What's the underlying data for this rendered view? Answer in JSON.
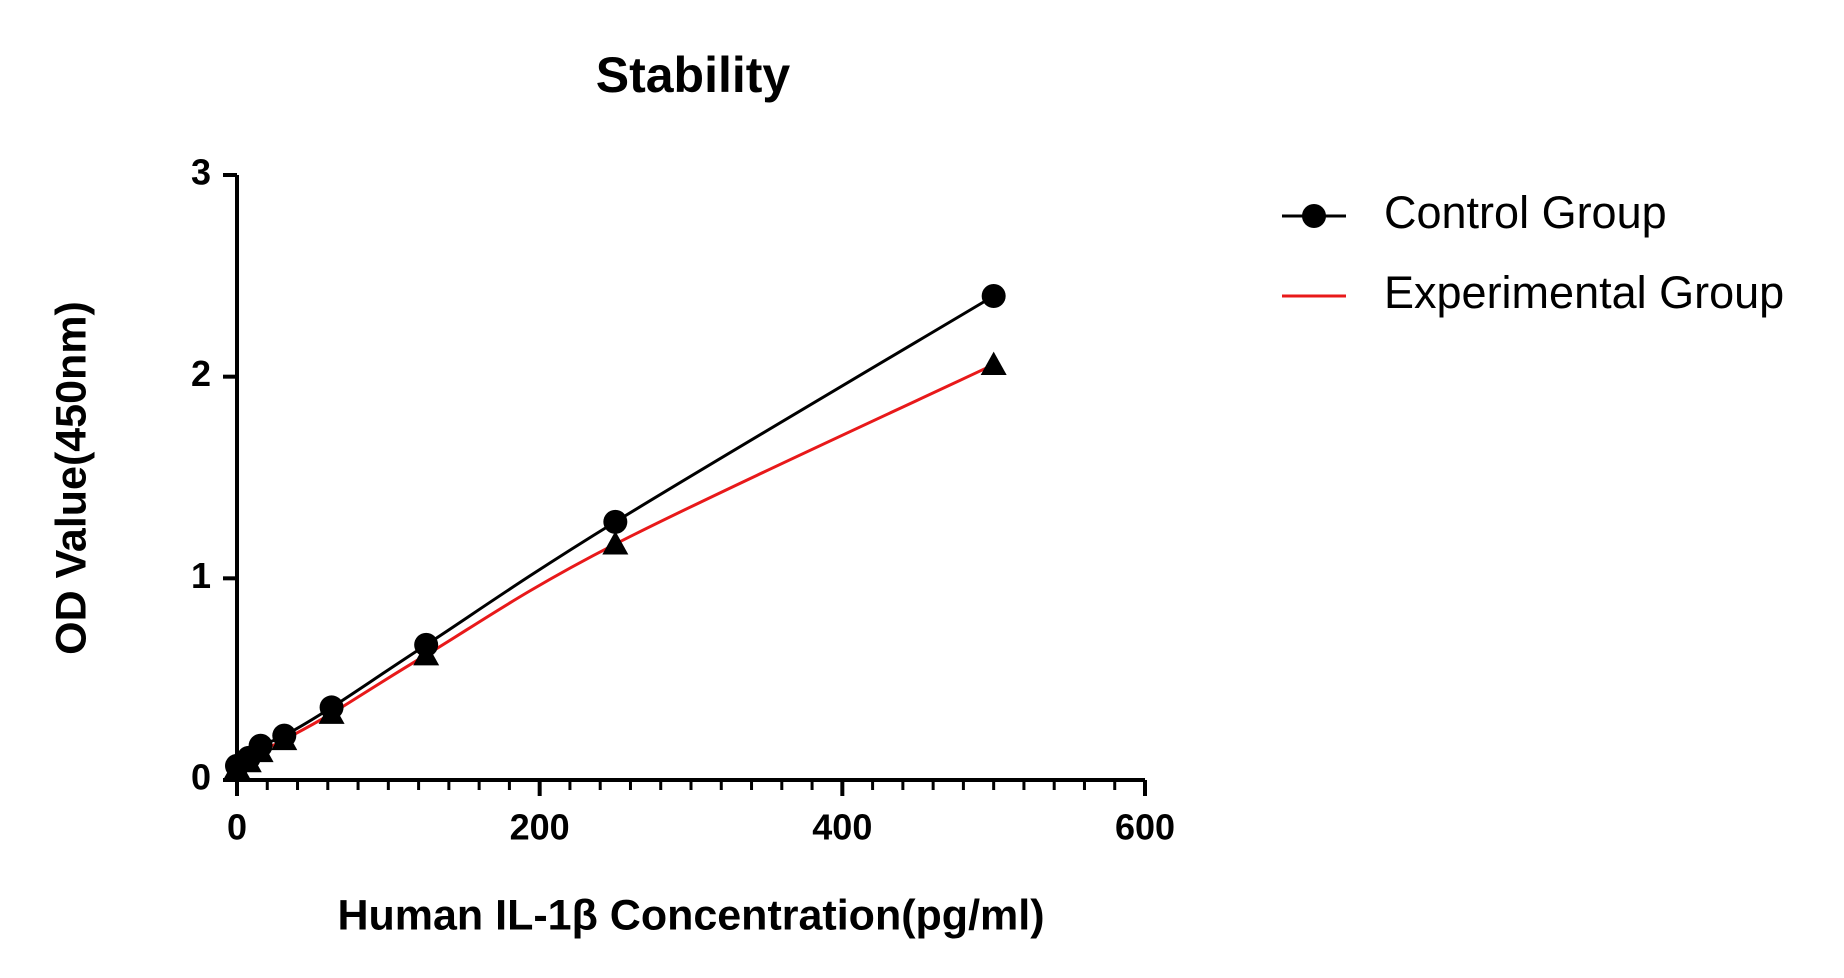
{
  "chart_data": {
    "type": "line",
    "title": "Stability",
    "x_label": "Human IL-1β Concentration(pg/ml)",
    "y_label": "OD Value(450nm)",
    "x": [
      0,
      7.8,
      15.6,
      31.25,
      62.5,
      125,
      250,
      500
    ],
    "series": [
      {
        "name": "Control Group",
        "color": "#000000",
        "marker": "circle",
        "marker_color": "#000000",
        "legend_marker": true,
        "values": [
          0.07,
          0.11,
          0.17,
          0.22,
          0.36,
          0.67,
          1.28,
          2.4
        ]
      },
      {
        "name": "Experimental Group",
        "color": "#e8191a",
        "marker": "triangle",
        "marker_color": "#000000",
        "legend_marker": false,
        "values": [
          0.06,
          0.09,
          0.14,
          0.2,
          0.33,
          0.62,
          1.17,
          2.06
        ]
      }
    ],
    "xlim": [
      0,
      600
    ],
    "xticks": [
      0,
      200,
      400,
      600
    ],
    "xminorticks": [
      20,
      40,
      60,
      80,
      100,
      120,
      140,
      160,
      180,
      220,
      240,
      260,
      280,
      300,
      320,
      340,
      360,
      380,
      420,
      440,
      460,
      480,
      500,
      520,
      540,
      560,
      580
    ],
    "ylim": [
      0,
      3
    ],
    "yticks": [
      0,
      1,
      2,
      3
    ],
    "grid": false,
    "legend": "right"
  }
}
